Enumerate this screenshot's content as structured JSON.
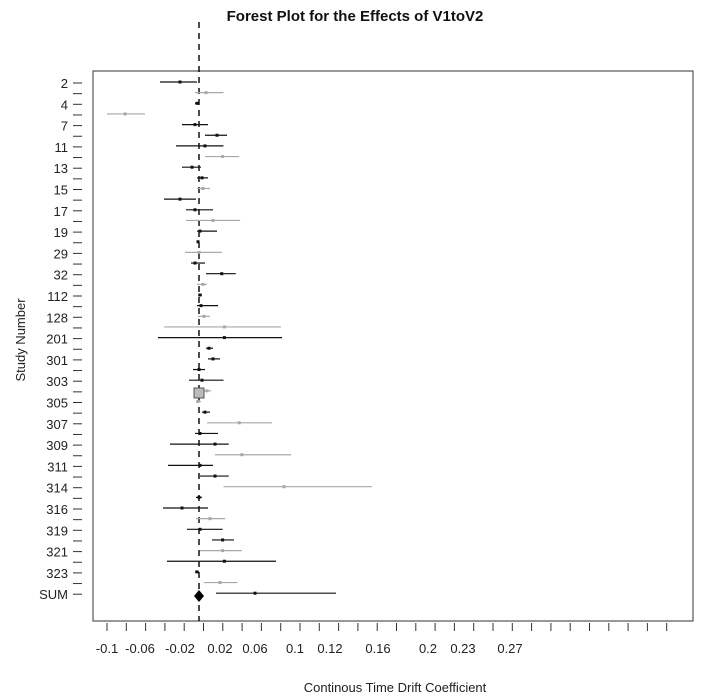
{
  "chart_data": {
    "type": "forest",
    "title": "Forest Plot for the Effects of V1toV2",
    "xlabel": "Continous Time Drift Coefficient",
    "ylabel": "Study Number",
    "reference_line": -0.001,
    "x_tick_labels": [
      "-0.1",
      "-0.06",
      "-0.02",
      "0.02",
      "0.06",
      "0.1",
      "0.12",
      "0.16",
      "0.2",
      "0.23",
      "0.27"
    ],
    "x_tick_values": [
      -0.1,
      -0.06,
      -0.02,
      0.02,
      0.06,
      0.1,
      0.12,
      0.16,
      0.2,
      0.23,
      0.27
    ],
    "y_labels": [
      "2",
      "4",
      "7",
      "11",
      "13",
      "15",
      "17",
      "19",
      "29",
      "32",
      "112",
      "128",
      "201",
      "301",
      "303",
      "305",
      "307",
      "309",
      "311",
      "314",
      "316",
      "319",
      "321",
      "323",
      "SUM"
    ],
    "rows": [
      {
        "est": -0.02,
        "lo": -0.04,
        "hi": -0.003,
        "color": "black"
      },
      {
        "est": 0.006,
        "lo": -0.005,
        "hi": 0.024,
        "color": "gray"
      },
      {
        "est": -0.003,
        "lo": -0.005,
        "hi": -0.001,
        "color": "black"
      },
      {
        "est": -0.078,
        "lo": -0.1,
        "hi": -0.055,
        "color": "gray"
      },
      {
        "est": -0.005,
        "lo": -0.018,
        "hi": 0.008,
        "color": "black"
      },
      {
        "est": 0.017,
        "lo": 0.005,
        "hi": 0.028,
        "color": "black"
      },
      {
        "est": 0.005,
        "lo": -0.024,
        "hi": 0.024,
        "color": "black"
      },
      {
        "est": 0.023,
        "lo": 0.005,
        "hi": 0.042,
        "color": "gray"
      },
      {
        "est": -0.008,
        "lo": -0.018,
        "hi": 0.001,
        "color": "black"
      },
      {
        "est": 0.002,
        "lo": -0.003,
        "hi": 0.008,
        "color": "black"
      },
      {
        "est": 0.003,
        "lo": -0.003,
        "hi": 0.01,
        "color": "gray"
      },
      {
        "est": -0.02,
        "lo": -0.036,
        "hi": -0.004,
        "color": "black"
      },
      {
        "est": -0.005,
        "lo": -0.014,
        "hi": 0.013,
        "color": "black"
      },
      {
        "est": 0.013,
        "lo": -0.014,
        "hi": 0.043,
        "color": "gray"
      },
      {
        "est": 0.0,
        "lo": -0.003,
        "hi": 0.017,
        "color": "black"
      },
      {
        "est": -0.002,
        "lo": -0.003,
        "hi": -0.001,
        "color": "black"
      },
      {
        "est": -0.001,
        "lo": -0.015,
        "hi": 0.022,
        "color": "gray"
      },
      {
        "est": -0.005,
        "lo": -0.009,
        "hi": 0.005,
        "color": "black"
      },
      {
        "est": 0.022,
        "lo": 0.006,
        "hi": 0.038,
        "color": "black"
      },
      {
        "est": 0.003,
        "lo": -0.003,
        "hi": 0.007,
        "color": "gray"
      },
      {
        "est": 0.0,
        "lo": -0.002,
        "hi": 0.002,
        "color": "black"
      },
      {
        "est": 0.001,
        "lo": -0.003,
        "hi": 0.018,
        "color": "black"
      },
      {
        "est": 0.004,
        "lo": -0.002,
        "hi": 0.01,
        "color": "gray"
      },
      {
        "est": 0.025,
        "lo": -0.036,
        "hi": 0.086,
        "color": "gray"
      },
      {
        "est": 0.025,
        "lo": -0.042,
        "hi": 0.087,
        "color": "black"
      },
      {
        "est": 0.009,
        "lo": 0.006,
        "hi": 0.013,
        "color": "black"
      },
      {
        "est": 0.013,
        "lo": 0.008,
        "hi": 0.02,
        "color": "black"
      },
      {
        "est": -0.001,
        "lo": -0.007,
        "hi": 0.005,
        "color": "black"
      },
      {
        "est": 0.002,
        "lo": -0.011,
        "hi": 0.024,
        "color": "black"
      },
      {
        "est": 0.007,
        "lo": 0.004,
        "hi": 0.011,
        "color": "gray"
      },
      {
        "est": -0.002,
        "lo": -0.004,
        "hi": 0.001,
        "color": "gray"
      },
      {
        "est": 0.005,
        "lo": 0.002,
        "hi": 0.01,
        "color": "black"
      },
      {
        "est": 0.042,
        "lo": 0.007,
        "hi": 0.077,
        "color": "gray"
      },
      {
        "est": 0.0,
        "lo": -0.005,
        "hi": 0.018,
        "color": "black"
      },
      {
        "est": 0.015,
        "lo": -0.03,
        "hi": 0.03,
        "color": "black"
      },
      {
        "est": 0.045,
        "lo": 0.015,
        "hi": 0.096,
        "color": "gray"
      },
      {
        "est": 0.0,
        "lo": -0.032,
        "hi": 0.013,
        "color": "black"
      },
      {
        "est": 0.015,
        "lo": 0.0,
        "hi": 0.03,
        "color": "black"
      },
      {
        "est": 0.089,
        "lo": 0.024,
        "hi": 0.155,
        "color": "gray"
      },
      {
        "est": -0.001,
        "lo": -0.004,
        "hi": 0.002,
        "color": "black"
      },
      {
        "est": -0.018,
        "lo": -0.037,
        "hi": 0.008,
        "color": "black"
      },
      {
        "est": 0.01,
        "lo": -0.004,
        "hi": 0.026,
        "color": "gray"
      },
      {
        "est": 0.0,
        "lo": -0.013,
        "hi": 0.023,
        "color": "black"
      },
      {
        "est": 0.023,
        "lo": 0.012,
        "hi": 0.036,
        "color": "black"
      },
      {
        "est": 0.023,
        "lo": 0.0,
        "hi": 0.045,
        "color": "gray"
      },
      {
        "est": 0.025,
        "lo": -0.033,
        "hi": 0.081,
        "color": "black"
      },
      {
        "est": -0.003,
        "lo": -0.005,
        "hi": -0.001,
        "color": "black"
      },
      {
        "est": 0.02,
        "lo": 0.004,
        "hi": 0.04,
        "color": "gray"
      },
      {
        "est": 0.06,
        "lo": 0.016,
        "hi": 0.125,
        "color": "black"
      }
    ],
    "summary": {
      "label": "SUM",
      "est": -0.001
    }
  }
}
